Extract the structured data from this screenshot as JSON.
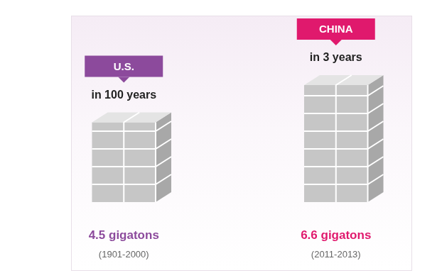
{
  "chart_data": {
    "type": "bar",
    "categories": [
      "U.S.",
      "CHINA"
    ],
    "subtitles": [
      "in 100 years",
      "in 3 years"
    ],
    "values": [
      4.5,
      6.6
    ],
    "value_labels": [
      "4.5 gigatons",
      "6.6 gigatons"
    ],
    "periods": [
      "(1901-2000)",
      "(2011-2013)"
    ],
    "color": "#c6c6c6",
    "ylim": [
      0,
      9
    ],
    "grid": false,
    "tick_labels": false,
    "data_labels": true
  }
}
